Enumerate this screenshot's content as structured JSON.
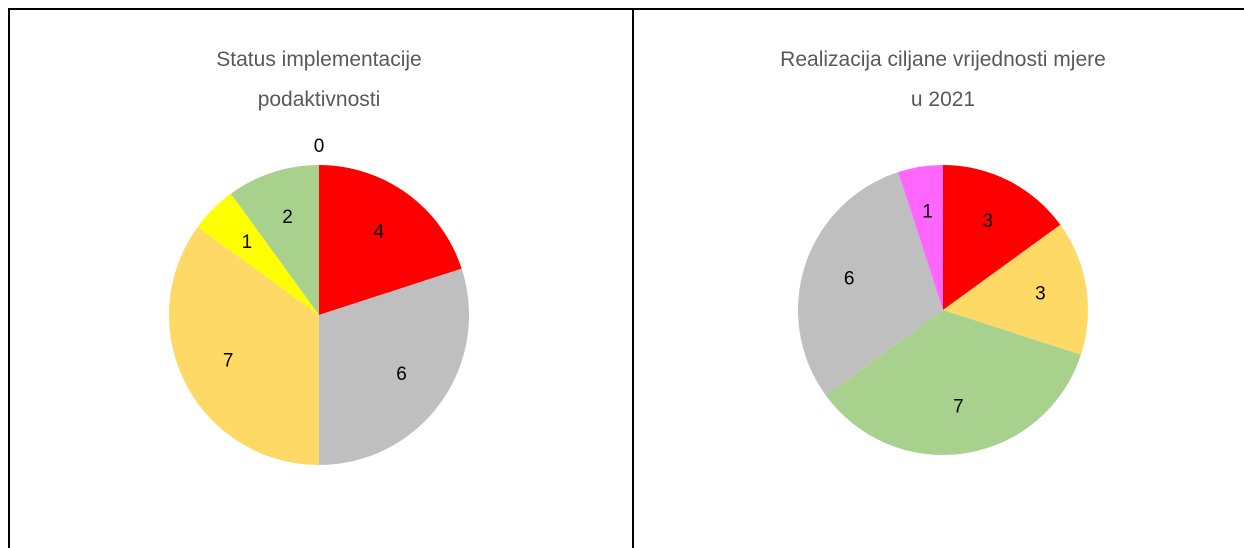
{
  "chart_data": [
    {
      "type": "pie",
      "title": "Status implementacije podaktivnosti",
      "values": [
        4,
        6,
        7,
        1,
        2,
        0
      ],
      "colors": [
        "#ff0000",
        "#bfbfbf",
        "#ffd966",
        "#ffff00",
        "#a9d18e",
        "#ff66ff"
      ]
    },
    {
      "type": "pie",
      "title": "Realizacija ciljane vrijednosti mjere u 2021",
      "values": [
        3,
        3,
        7,
        6,
        1
      ],
      "colors": [
        "#ff0000",
        "#ffd966",
        "#a9d18e",
        "#bfbfbf",
        "#ff66ff"
      ]
    }
  ]
}
